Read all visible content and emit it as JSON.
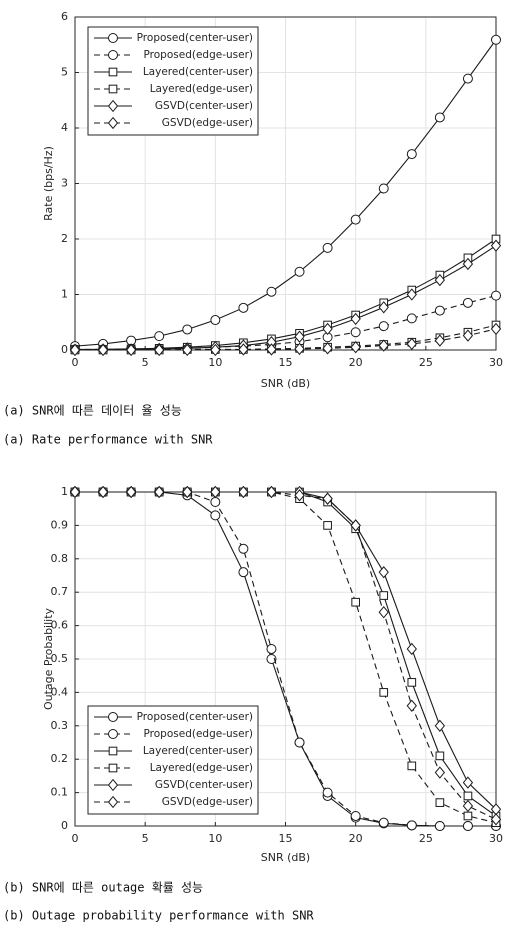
{
  "chart_data": [
    {
      "type": "line",
      "ylabel": "Rate (bps/Hz)",
      "xlabel": "SNR (dB)",
      "caption": [
        "(a) SNR에 따른 데이터 율 성능",
        "(a) Rate performance with SNR"
      ],
      "x": [
        0,
        2,
        4,
        6,
        8,
        10,
        12,
        14,
        16,
        18,
        20,
        22,
        24,
        26,
        28,
        30
      ],
      "xlim": [
        0,
        30
      ],
      "xticks": [
        0,
        5,
        10,
        15,
        20,
        25,
        30
      ],
      "ylim": [
        0,
        6
      ],
      "yticks": [
        0,
        1,
        2,
        3,
        4,
        5,
        6
      ],
      "grid": true,
      "legend": "top-left",
      "series": [
        {
          "name": "Proposed(center-user)",
          "color": "#1a1a1a",
          "marker": "circle",
          "dash": false,
          "values": [
            0.07,
            0.11,
            0.17,
            0.25,
            0.37,
            0.54,
            0.76,
            1.05,
            1.41,
            1.84,
            2.35,
            2.91,
            3.53,
            4.19,
            4.89,
            5.59
          ]
        },
        {
          "name": "Proposed(edge-user)",
          "color": "#1a1a1a",
          "marker": "circle",
          "dash": true,
          "values": [
            0.01,
            0.01,
            0.02,
            0.02,
            0.03,
            0.05,
            0.07,
            0.1,
            0.15,
            0.23,
            0.32,
            0.43,
            0.57,
            0.71,
            0.85,
            0.98
          ]
        },
        {
          "name": "Layered(center-user)",
          "color": "#1a1a1a",
          "marker": "square",
          "dash": false,
          "values": [
            0.01,
            0.01,
            0.02,
            0.03,
            0.05,
            0.08,
            0.13,
            0.2,
            0.3,
            0.45,
            0.63,
            0.85,
            1.08,
            1.35,
            1.66,
            2.0
          ]
        },
        {
          "name": "Layered(edge-user)",
          "color": "#1a1a1a",
          "marker": "square",
          "dash": true,
          "values": [
            0,
            0,
            0,
            0,
            0.01,
            0.01,
            0.01,
            0.02,
            0.03,
            0.05,
            0.07,
            0.1,
            0.14,
            0.22,
            0.32,
            0.45
          ]
        },
        {
          "name": "GSVD(center-user)",
          "color": "#1a1a1a",
          "marker": "diamond",
          "dash": false,
          "values": [
            0.005,
            0.01,
            0.01,
            0.02,
            0.03,
            0.05,
            0.08,
            0.14,
            0.24,
            0.38,
            0.56,
            0.77,
            1.0,
            1.26,
            1.55,
            1.88
          ]
        },
        {
          "name": "GSVD(edge-user)",
          "color": "#1a1a1a",
          "marker": "diamond",
          "dash": true,
          "values": [
            0,
            0,
            0,
            0,
            0,
            0,
            0.01,
            0.01,
            0.02,
            0.03,
            0.05,
            0.08,
            0.11,
            0.17,
            0.26,
            0.38
          ]
        }
      ]
    },
    {
      "type": "line",
      "ylabel": "Outage Probability",
      "xlabel": "SNR (dB)",
      "caption": [
        "(b) SNR에 따른 outage 확률 성능",
        "(b) Outage probability performance with SNR"
      ],
      "x": [
        0,
        2,
        4,
        6,
        8,
        10,
        12,
        14,
        16,
        18,
        20,
        22,
        24,
        26,
        28,
        30
      ],
      "xlim": [
        0,
        30
      ],
      "xticks": [
        0,
        5,
        10,
        15,
        20,
        25,
        30
      ],
      "ylim": [
        0,
        1
      ],
      "yticks": [
        0,
        0.1,
        0.2,
        0.3,
        0.4,
        0.5,
        0.6,
        0.7,
        0.8,
        0.9,
        1
      ],
      "grid": true,
      "legend": "bottom-left",
      "series": [
        {
          "name": "Proposed(center-user)",
          "color": "#1a1a1a",
          "marker": "circle",
          "dash": false,
          "values": [
            1,
            1,
            1,
            1,
            0.99,
            0.93,
            0.76,
            0.5,
            0.25,
            0.09,
            0.025,
            0.008,
            0.002,
            0,
            0,
            0
          ]
        },
        {
          "name": "Proposed(edge-user)",
          "color": "#1a1a1a",
          "marker": "circle",
          "dash": true,
          "values": [
            1,
            1,
            1,
            1,
            1,
            0.97,
            0.83,
            0.53,
            0.25,
            0.1,
            0.03,
            0.01,
            0.002,
            0,
            0,
            0
          ]
        },
        {
          "name": "Layered(center-user)",
          "color": "#1a1a1a",
          "marker": "square",
          "dash": false,
          "values": [
            1,
            1,
            1,
            1,
            1,
            1,
            1,
            1,
            1,
            0.97,
            0.89,
            0.69,
            0.43,
            0.21,
            0.09,
            0.03
          ]
        },
        {
          "name": "Layered(edge-user)",
          "color": "#1a1a1a",
          "marker": "square",
          "dash": true,
          "values": [
            1,
            1,
            1,
            1,
            1,
            1,
            1,
            1,
            0.98,
            0.9,
            0.67,
            0.4,
            0.18,
            0.07,
            0.03,
            0.01
          ]
        },
        {
          "name": "GSVD(center-user)",
          "color": "#1a1a1a",
          "marker": "diamond",
          "dash": false,
          "values": [
            1,
            1,
            1,
            1,
            1,
            1,
            1,
            1,
            1,
            0.98,
            0.9,
            0.76,
            0.53,
            0.3,
            0.13,
            0.05
          ]
        },
        {
          "name": "GSVD(edge-user)",
          "color": "#1a1a1a",
          "marker": "diamond",
          "dash": true,
          "values": [
            1,
            1,
            1,
            1,
            1,
            1,
            1,
            1,
            0.99,
            0.98,
            0.9,
            0.64,
            0.36,
            0.16,
            0.06,
            0.02
          ]
        }
      ]
    }
  ]
}
